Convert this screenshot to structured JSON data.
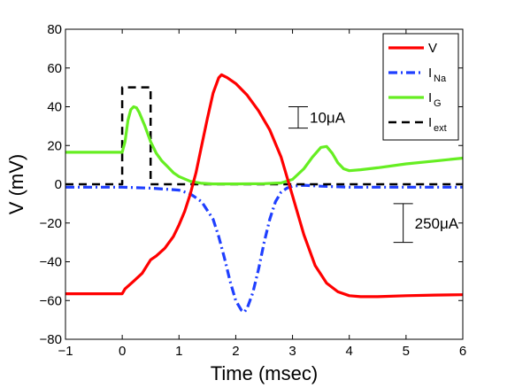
{
  "chart_data": {
    "type": "line",
    "xlabel": "Time (msec)",
    "ylabel": "V (mV)",
    "xlim": [
      -1,
      6
    ],
    "ylim": [
      -80,
      80
    ],
    "xticks": [
      -1,
      0,
      1,
      2,
      3,
      4,
      5,
      6
    ],
    "yticks": [
      -80,
      -60,
      -40,
      -20,
      0,
      20,
      40,
      60,
      80
    ],
    "xtick_labels": [
      "−1",
      "0",
      "1",
      "2",
      "3",
      "4",
      "5",
      "6"
    ],
    "ytick_labels": [
      "−80",
      "−60",
      "−40",
      "−20",
      "0",
      "20",
      "40",
      "60",
      "80"
    ],
    "legend_position": "top-right",
    "series": [
      {
        "name": "V",
        "legend_main": "V",
        "legend_sub": "",
        "color": "#ff0000",
        "style": "solid",
        "x": [
          -1,
          0,
          0.05,
          0.2,
          0.35,
          0.5,
          0.6,
          0.75,
          0.9,
          1.0,
          1.1,
          1.2,
          1.3,
          1.4,
          1.5,
          1.6,
          1.7,
          1.75,
          1.85,
          2.0,
          2.2,
          2.4,
          2.6,
          2.8,
          3.0,
          3.2,
          3.4,
          3.6,
          3.8,
          4.0,
          4.2,
          4.5,
          5.0,
          5.5,
          6.0
        ],
        "y": [
          -56.5,
          -56.5,
          -54,
          -50,
          -46,
          -39,
          -37,
          -33,
          -27,
          -21,
          -14,
          -5,
          6,
          20,
          34,
          47,
          55,
          56.5,
          55,
          52,
          46,
          38,
          28,
          14,
          -6,
          -26,
          -42,
          -51,
          -55.5,
          -57.5,
          -58,
          -58,
          -57.5,
          -57.2,
          -57
        ]
      },
      {
        "name": "I_Na",
        "legend_main": "I",
        "legend_sub": "Na",
        "color": "#1f3fff",
        "style": "dashdot",
        "x": [
          -1,
          0,
          0.5,
          1.0,
          1.2,
          1.4,
          1.6,
          1.7,
          1.8,
          1.9,
          2.0,
          2.1,
          2.15,
          2.2,
          2.3,
          2.4,
          2.5,
          2.6,
          2.7,
          2.8,
          2.9,
          3.0,
          3.2,
          3.5,
          4.0,
          5.0,
          6.0
        ],
        "y": [
          -1.5,
          -1.5,
          -2,
          -3,
          -5,
          -9,
          -18,
          -27,
          -38,
          -50,
          -60,
          -65,
          -66,
          -64,
          -56,
          -44,
          -30,
          -18,
          -9,
          -4,
          -2,
          -1,
          -0.5,
          -1,
          -1.5,
          -1.5,
          -1.5
        ]
      },
      {
        "name": "I_G",
        "legend_main": "I",
        "legend_sub": "G",
        "color": "#66ee22",
        "style": "solid",
        "x": [
          -1,
          0,
          0.05,
          0.1,
          0.15,
          0.2,
          0.25,
          0.3,
          0.4,
          0.5,
          0.6,
          0.7,
          0.8,
          0.9,
          1.0,
          1.2,
          1.4,
          1.6,
          2.0,
          2.5,
          2.8,
          3.0,
          3.2,
          3.35,
          3.5,
          3.6,
          3.7,
          3.8,
          3.9,
          4.0,
          4.2,
          4.5,
          5.0,
          5.5,
          6.0
        ],
        "y": [
          16.5,
          16.5,
          22,
          33,
          38.5,
          40,
          39.5,
          37,
          30,
          22,
          16,
          12,
          9,
          6,
          4,
          1.5,
          0.5,
          0.2,
          0.2,
          0.3,
          0.7,
          2.5,
          8,
          14,
          19,
          19.5,
          16,
          11,
          8,
          7,
          7.5,
          8.5,
          10.5,
          12,
          13.5
        ]
      },
      {
        "name": "I_ext",
        "legend_main": "I",
        "legend_sub": "ext",
        "color": "#000000",
        "style": "dashed",
        "x": [
          -1,
          0,
          0,
          0.5,
          0.5,
          6
        ],
        "y": [
          0,
          0,
          50,
          50,
          0,
          0
        ]
      }
    ],
    "scale_bars": [
      {
        "label": "10μA",
        "x": 3.1,
        "y_top": 40,
        "y_bottom": 29
      },
      {
        "label": "250μA",
        "x": 4.95,
        "y_top": -10,
        "y_bottom": -30
      }
    ]
  }
}
